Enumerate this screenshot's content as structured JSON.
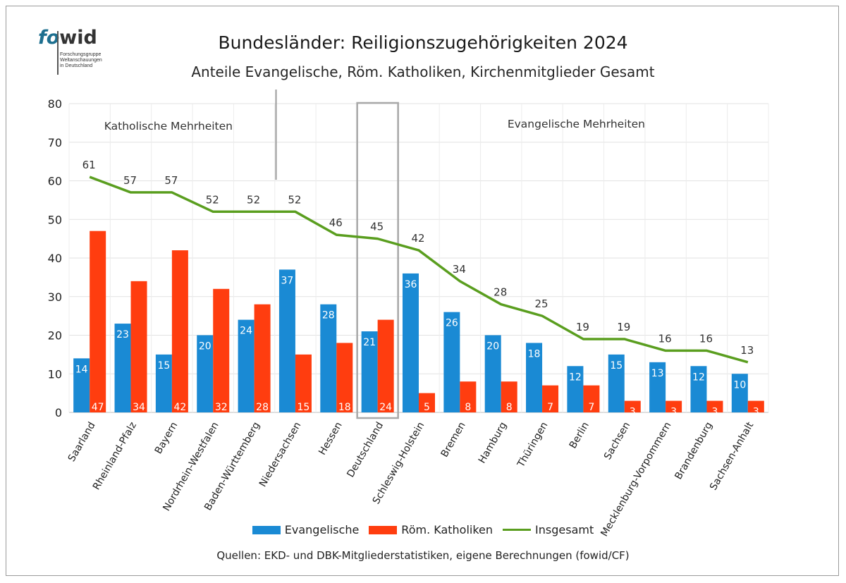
{
  "logo": {
    "word_a": "fo",
    "word_b": "wid",
    "sub_lines": [
      "Forschungsgruppe",
      "Weltanschauungen",
      "in Deutschland"
    ]
  },
  "chart_data": {
    "type": "bar",
    "title": "Bundesländer: Reiligionszugehörigkeiten 2024",
    "subtitle": "Anteile Evangelische, Röm. Katholiken, Kirchenmitglieder Gesamt",
    "categories": [
      "Saarland",
      "Rheinland-Pfalz",
      "Bayern",
      "Nordrhein-Westfalen",
      "Baden-Württemberg",
      "Niedersachsen",
      "Hessen",
      "Deutschland",
      "Schleswig-Holstein",
      "Bremen",
      "Hamburg",
      "Thüringen",
      "Berlin",
      "Sachsen",
      "Mecklenburg-Vorpommern",
      "Brandenburg",
      "Sachsen-Anhalt"
    ],
    "series": [
      {
        "name": "Evangelische",
        "type": "bar",
        "color": "#1a8ad4",
        "values": [
          14,
          23,
          15,
          20,
          24,
          37,
          28,
          21,
          36,
          26,
          20,
          18,
          12,
          15,
          13,
          12,
          10
        ]
      },
      {
        "name": "Röm. Katholiken",
        "type": "bar",
        "color": "#ff3d0f",
        "values": [
          47,
          34,
          42,
          32,
          28,
          15,
          18,
          24,
          5,
          8,
          8,
          7,
          7,
          3,
          3,
          3,
          3
        ]
      },
      {
        "name": "Insgesamt",
        "type": "line",
        "color": "#5a9e1f",
        "values": [
          61,
          57,
          57,
          52,
          52,
          52,
          46,
          45,
          42,
          34,
          28,
          25,
          19,
          19,
          16,
          16,
          13
        ]
      }
    ],
    "yticks": [
      0,
      10,
      20,
      30,
      40,
      50,
      60,
      70,
      80
    ],
    "ylim": [
      0,
      80
    ],
    "grid": true,
    "legend_position": "bottom",
    "annotations": [
      "Katholische Mehrheiten",
      "Evangelische Mehrheiten"
    ],
    "highlight_category": "Deutschland"
  },
  "source": "Quellen: EKD- und DBK-Mitgliederstatistiken, eigene Berechnungen (fowid/CF)"
}
